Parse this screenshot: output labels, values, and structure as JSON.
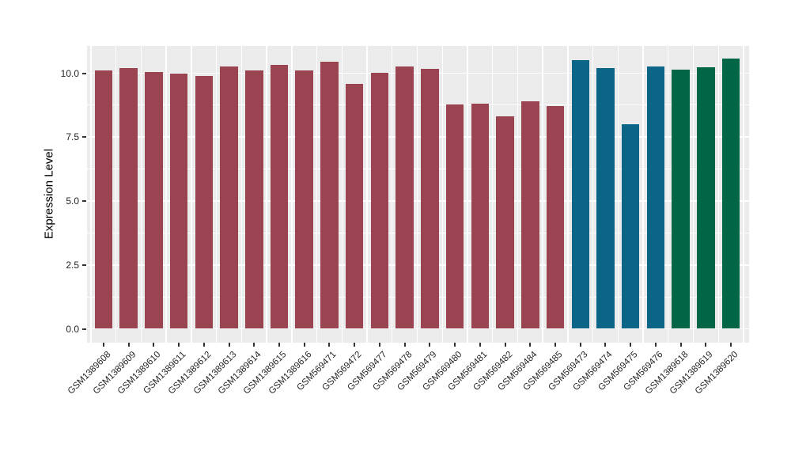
{
  "chart_data": {
    "type": "bar",
    "title": "",
    "xlabel": "",
    "ylabel": "Expression Level",
    "categories": [
      "GSM1389608",
      "GSM1389609",
      "GSM1389610",
      "GSM1389611",
      "GSM1389612",
      "GSM1389613",
      "GSM1389614",
      "GSM1389615",
      "GSM1389616",
      "GSM569471",
      "GSM569472",
      "GSM569477",
      "GSM569478",
      "GSM569479",
      "GSM569480",
      "GSM569481",
      "GSM569482",
      "GSM569484",
      "GSM569485",
      "GSM569473",
      "GSM569474",
      "GSM569475",
      "GSM569476",
      "GSM1389618",
      "GSM1389619",
      "GSM1389620"
    ],
    "values": [
      10.1,
      10.2,
      10.05,
      9.97,
      9.89,
      10.25,
      10.12,
      10.33,
      10.12,
      10.44,
      9.58,
      10.01,
      10.27,
      10.16,
      8.78,
      8.8,
      8.3,
      8.89,
      8.71,
      10.5,
      10.21,
      8.01,
      10.27,
      10.14,
      10.24,
      10.57
    ],
    "bar_groups": [
      "red",
      "red",
      "red",
      "red",
      "red",
      "red",
      "red",
      "red",
      "red",
      "red",
      "red",
      "red",
      "red",
      "red",
      "red",
      "red",
      "red",
      "red",
      "red",
      "blue",
      "blue",
      "blue",
      "blue",
      "green",
      "green",
      "green"
    ],
    "palette": {
      "red": "#9A4351",
      "blue": "#0B6587",
      "green": "#006645"
    },
    "ylim": [
      0,
      11.07
    ],
    "yticks_major": [
      0,
      2.5,
      5,
      7.5,
      10
    ],
    "yticks_minor": [
      1.25,
      3.75,
      6.25,
      8.75
    ],
    "ytick_labels": [
      "0.0",
      "2.5",
      "5.0",
      "7.5",
      "10.0"
    ],
    "grid": "on",
    "legend": "none",
    "panel_bg": "#EBEBEB",
    "grid_color": "#FFFFFF",
    "tick_color": "#333333",
    "axis_text_color": "#262626"
  }
}
